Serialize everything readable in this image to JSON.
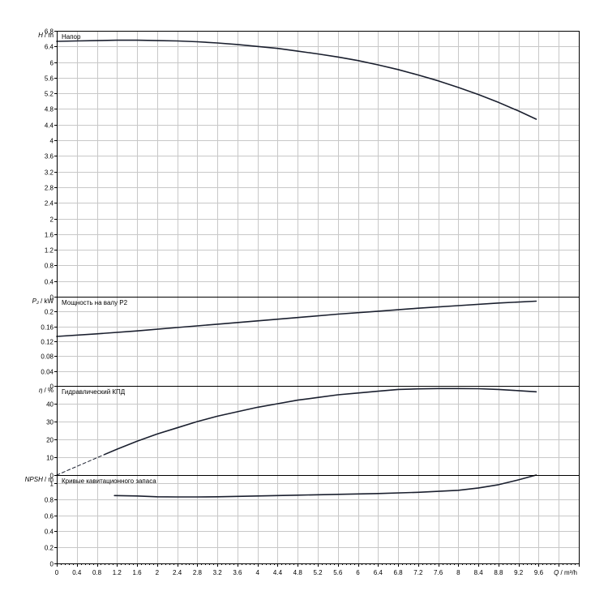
{
  "chart_data": {
    "type": "line",
    "x_axis": {
      "label": "Q / m³/h",
      "ticks": [
        0,
        0.4,
        0.8,
        1.2,
        1.6,
        2,
        2.4,
        2.8,
        3.2,
        3.6,
        4,
        4.4,
        4.8,
        5.2,
        5.6,
        6,
        6.4,
        6.8,
        7.2,
        7.6,
        8,
        8.4,
        8.8,
        9.2,
        9.6
      ],
      "tick_labels": [
        "0",
        "0.4",
        "0.8",
        "1.2",
        "1.6",
        "2",
        "2.4",
        "2.8",
        "3.2",
        "3.6",
        "4",
        "4.4",
        "4.8",
        "5.2",
        "5.6",
        "6",
        "6.4",
        "6.8",
        "7.2",
        "7.6",
        "8",
        "8.4",
        "8.8",
        "9.2",
        "9.6"
      ],
      "xlim": [
        0,
        10.4
      ]
    },
    "grid": true,
    "line_color": "#1a1f2e",
    "panels": [
      {
        "id": "head",
        "title": "Напор",
        "ylabel_main": "H",
        "ylabel_unit": "/ m",
        "ylim": [
          0,
          6.8
        ],
        "ticks": [
          0,
          0.4,
          0.8,
          1.2,
          1.6,
          2,
          2.4,
          2.8,
          3.2,
          3.6,
          4,
          4.4,
          4.8,
          5.2,
          5.6,
          6,
          6.4,
          6.8
        ],
        "tick_labels": [
          "0",
          "0.4",
          "0.8",
          "1.2",
          "1.6",
          "2",
          "2.4",
          "2.8",
          "3.2",
          "3.6",
          "4",
          "4.4",
          "4.8",
          "5.2",
          "5.6",
          "6",
          "6.4",
          "6.8"
        ],
        "series": [
          {
            "style": "solid",
            "x": [
              0,
              0.4,
              0.8,
              1.2,
              1.6,
              2,
              2.4,
              2.8,
              3.2,
              3.6,
              4,
              4.4,
              4.8,
              5.2,
              5.6,
              6,
              6.4,
              6.8,
              7.2,
              7.6,
              8,
              8.4,
              8.8,
              9.2,
              9.55
            ],
            "y": [
              6.53,
              6.54,
              6.55,
              6.56,
              6.56,
              6.55,
              6.54,
              6.52,
              6.49,
              6.45,
              6.4,
              6.35,
              6.28,
              6.21,
              6.13,
              6.04,
              5.93,
              5.81,
              5.67,
              5.52,
              5.35,
              5.17,
              4.97,
              4.75,
              4.54
            ]
          }
        ]
      },
      {
        "id": "power",
        "title": "Мощность на валу P2",
        "ylabel_main": "P₂",
        "ylabel_unit": "/ kW",
        "ylim": [
          0,
          0.24
        ],
        "ticks": [
          0,
          0.04,
          0.08,
          0.12,
          0.16,
          0.2
        ],
        "tick_labels": [
          "0",
          "0.04",
          "0.08",
          "0.12",
          "0.16",
          "0.2"
        ],
        "series": [
          {
            "style": "solid",
            "x": [
              0,
              0.8,
              1.6,
              2.4,
              3.2,
              4,
              4.8,
              5.6,
              6.4,
              7.2,
              8,
              8.8,
              9.55
            ],
            "y": [
              0.133,
              0.14,
              0.148,
              0.157,
              0.166,
              0.175,
              0.184,
              0.193,
              0.201,
              0.209,
              0.216,
              0.223,
              0.228
            ]
          }
        ]
      },
      {
        "id": "efficiency",
        "title": "Гидравлический КПД",
        "ylabel_main": "η",
        "ylabel_unit": "/ %",
        "ylim": [
          0,
          50
        ],
        "ticks": [
          0,
          10,
          20,
          30,
          40
        ],
        "tick_labels": [
          "0",
          "10",
          "20",
          "30",
          "40"
        ],
        "series": [
          {
            "style": "solid",
            "x": [
              0.95,
              1.2,
              1.6,
              2,
              2.4,
              2.8,
              3.2,
              3.6,
              4,
              4.4,
              4.8,
              5.2,
              5.6,
              6,
              6.4,
              6.8,
              7.2,
              7.6,
              8,
              8.4,
              8.8,
              9.2,
              9.55
            ],
            "y": [
              11.5,
              14.5,
              19,
              23,
              26.5,
              30,
              33,
              35.5,
              38,
              40,
              42,
              43.5,
              45,
              46,
              47,
              48,
              48.3,
              48.5,
              48.5,
              48.4,
              48,
              47.3,
              46.7
            ]
          },
          {
            "style": "dashed",
            "x": [
              0,
              0.95
            ],
            "y": [
              0,
              11.5
            ]
          }
        ]
      },
      {
        "id": "npsh",
        "title": "Кривые кавитационного запаса",
        "ylabel_main": "NPSH",
        "ylabel_unit": "/ m",
        "ylim": [
          0,
          1.1
        ],
        "ticks": [
          0,
          0.2,
          0.4,
          0.6,
          0.8,
          1
        ],
        "tick_labels": [
          "0",
          "0.2",
          "0.4",
          "0.6",
          "0.8",
          "1"
        ],
        "series": [
          {
            "style": "solid",
            "x": [
              1.15,
              1.6,
              2,
              2.4,
              2.8,
              3.2,
              3.6,
              4,
              4.8,
              5.6,
              6.4,
              7.2,
              8,
              8.4,
              8.8,
              9.2,
              9.55
            ],
            "y": [
              0.845,
              0.84,
              0.83,
              0.828,
              0.828,
              0.83,
              0.835,
              0.84,
              0.85,
              0.86,
              0.87,
              0.885,
              0.91,
              0.94,
              0.98,
              1.04,
              1.1
            ]
          }
        ]
      }
    ]
  }
}
